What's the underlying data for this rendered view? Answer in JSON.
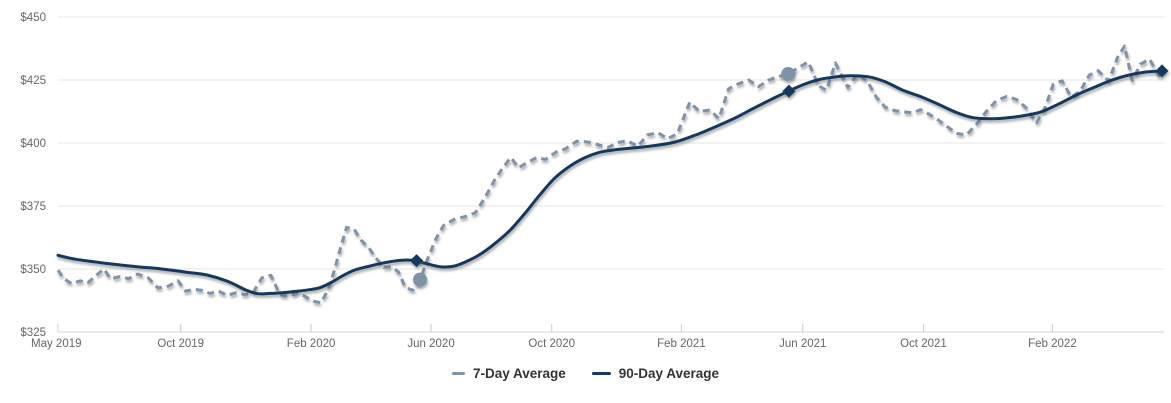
{
  "chart_data": {
    "type": "line",
    "title": "",
    "xlabel": "",
    "ylabel": "",
    "x_unit": "weeks since May 2019",
    "xlim": [
      0,
      159.2
    ],
    "ylim": [
      325,
      450
    ],
    "grid": true,
    "legend_position": "bottom",
    "currency_prefix": "$",
    "y_ticks": [
      {
        "label": "$450",
        "value": 450
      },
      {
        "label": "$425",
        "value": 425
      },
      {
        "label": "$400",
        "value": 400
      },
      {
        "label": "$375",
        "value": 375
      },
      {
        "label": "$350",
        "value": 350
      },
      {
        "label": "$325",
        "value": 325
      }
    ],
    "x_ticks": [
      {
        "label": "May 2019",
        "w": 0
      },
      {
        "label": "Oct 2019",
        "w": 17.7
      },
      {
        "label": "Feb 2020",
        "w": 36.5
      },
      {
        "label": "Jun 2020",
        "w": 53.8
      },
      {
        "label": "Oct 2020",
        "w": 71.2
      },
      {
        "label": "Feb 2021",
        "w": 89.9
      },
      {
        "label": "Jun 2021",
        "w": 107.4
      },
      {
        "label": "Oct 2021",
        "w": 124.8
      },
      {
        "label": "Feb 2022",
        "w": 143.4
      }
    ],
    "series": [
      {
        "name": "7-Day Average",
        "style": "dashed",
        "color": "#7e93aa",
        "marker_shape": "circle",
        "markers": [
          [
            52.2,
            345.8
          ],
          [
            105.3,
            427.4
          ]
        ],
        "points": [
          [
            0,
            349.5
          ],
          [
            0.9,
            346
          ],
          [
            2,
            344.2
          ],
          [
            3.2,
            345.3
          ],
          [
            4.3,
            344.5
          ],
          [
            5.5,
            347.5
          ],
          [
            6.6,
            350
          ],
          [
            7.6,
            346.2
          ],
          [
            8.9,
            347
          ],
          [
            10.2,
            346.2
          ],
          [
            11.5,
            348
          ],
          [
            13,
            346.5
          ],
          [
            14.4,
            342.5
          ],
          [
            15.9,
            343.2
          ],
          [
            17.3,
            345.3
          ],
          [
            18.4,
            341.2
          ],
          [
            19.6,
            342
          ],
          [
            20.8,
            341.5
          ],
          [
            21.9,
            340.3
          ],
          [
            23.1,
            341.3
          ],
          [
            24.4,
            339.6
          ],
          [
            25.7,
            340.6
          ],
          [
            27,
            339.8
          ],
          [
            28.2,
            341
          ],
          [
            29.4,
            346.5
          ],
          [
            30.7,
            347.5
          ],
          [
            32,
            339.8
          ],
          [
            33.3,
            339.2
          ],
          [
            34.6,
            340.6
          ],
          [
            35.7,
            339
          ],
          [
            36.9,
            337.2
          ],
          [
            37.9,
            336.6
          ],
          [
            38.9,
            341.5
          ],
          [
            39.8,
            349
          ],
          [
            40.6,
            357
          ],
          [
            41.6,
            366.5
          ],
          [
            42.7,
            365.8
          ],
          [
            43.7,
            361.5
          ],
          [
            44.8,
            358.5
          ],
          [
            45.8,
            354.5
          ],
          [
            47,
            350.7
          ],
          [
            48.1,
            350.9
          ],
          [
            49.1,
            348.8
          ],
          [
            50.1,
            342.6
          ],
          [
            51.2,
            341.6
          ],
          [
            52.2,
            345.8
          ],
          [
            53.3,
            354
          ],
          [
            54.5,
            362
          ],
          [
            55.6,
            367.3
          ],
          [
            57.1,
            369.7
          ],
          [
            58.7,
            370.8
          ],
          [
            60.2,
            372.4
          ],
          [
            61.7,
            379
          ],
          [
            63,
            385.5
          ],
          [
            64.1,
            390
          ],
          [
            65.3,
            394.3
          ],
          [
            66.4,
            390.2
          ],
          [
            67.7,
            392.3
          ],
          [
            69,
            394.2
          ],
          [
            70.3,
            393.5
          ],
          [
            71.8,
            396.4
          ],
          [
            73.2,
            397.7
          ],
          [
            74.8,
            400.7
          ],
          [
            76.4,
            400.4
          ],
          [
            77.8,
            399.4
          ],
          [
            79.3,
            398.2
          ],
          [
            80.7,
            400.2
          ],
          [
            82.1,
            400.9
          ],
          [
            83.6,
            398.7
          ],
          [
            85,
            403.2
          ],
          [
            86.5,
            404.1
          ],
          [
            87.9,
            401.8
          ],
          [
            89.3,
            403.6
          ],
          [
            91.1,
            416.2
          ],
          [
            92.5,
            412.5
          ],
          [
            94,
            413.1
          ],
          [
            95.3,
            409.7
          ],
          [
            96.7,
            421.5
          ],
          [
            98.1,
            423.5
          ],
          [
            99.6,
            425
          ],
          [
            101,
            422.4
          ],
          [
            102.5,
            425
          ],
          [
            103.9,
            426.4
          ],
          [
            105.3,
            427.4
          ],
          [
            106.6,
            429.6
          ],
          [
            108.2,
            432.2
          ],
          [
            109.7,
            422.6
          ],
          [
            110.8,
            421
          ],
          [
            112.1,
            431.7
          ],
          [
            113.9,
            422
          ],
          [
            115.3,
            427.4
          ],
          [
            116.7,
            424.6
          ],
          [
            118,
            418.2
          ],
          [
            119.3,
            414.2
          ],
          [
            120.6,
            412.9
          ],
          [
            121.9,
            412.4
          ],
          [
            123.2,
            412
          ],
          [
            124.4,
            413.2
          ],
          [
            125.7,
            411.3
          ],
          [
            127,
            409
          ],
          [
            128.3,
            406.4
          ],
          [
            129.6,
            403.8
          ],
          [
            131,
            403.2
          ],
          [
            132.4,
            407.3
          ],
          [
            133.9,
            412.6
          ],
          [
            135.3,
            416.8
          ],
          [
            136.8,
            418.5
          ],
          [
            138.2,
            417.3
          ],
          [
            139.6,
            414
          ],
          [
            141.1,
            408
          ],
          [
            142.4,
            414.5
          ],
          [
            143.5,
            423.2
          ],
          [
            144.8,
            424.7
          ],
          [
            146.1,
            418.2
          ],
          [
            147.4,
            420.6
          ],
          [
            148.7,
            426.9
          ],
          [
            150,
            428.7
          ],
          [
            151.5,
            424.6
          ],
          [
            152.8,
            434
          ],
          [
            153.8,
            438.5
          ],
          [
            154.9,
            424.8
          ],
          [
            156.1,
            431.3
          ],
          [
            157.4,
            433.3
          ],
          [
            158.4,
            428.4
          ],
          [
            159.2,
            424.8
          ]
        ]
      },
      {
        "name": "90-Day Average",
        "style": "solid",
        "color": "#17395d",
        "marker_shape": "diamond",
        "markers": [
          [
            51.7,
            353.3
          ],
          [
            105.4,
            420.6
          ],
          [
            159.2,
            428.6
          ]
        ],
        "points": [
          [
            0,
            355.4
          ],
          [
            2.5,
            353.9
          ],
          [
            7.1,
            352.2
          ],
          [
            11.4,
            350.9
          ],
          [
            14.7,
            350.1
          ],
          [
            18.3,
            348.8
          ],
          [
            21.5,
            347.6
          ],
          [
            24.4,
            345.2
          ],
          [
            27,
            341.8
          ],
          [
            28.8,
            340.2
          ],
          [
            30.6,
            340.3
          ],
          [
            32.4,
            340.6
          ],
          [
            34.2,
            341.1
          ],
          [
            36.3,
            341.8
          ],
          [
            37.8,
            342.6
          ],
          [
            39.5,
            344.8
          ],
          [
            41.1,
            347.4
          ],
          [
            42.8,
            349.6
          ],
          [
            45,
            351.2
          ],
          [
            47.1,
            352.5
          ],
          [
            49.3,
            353.4
          ],
          [
            51,
            353.5
          ],
          [
            52.9,
            352.3
          ],
          [
            55.1,
            350.9
          ],
          [
            57.2,
            351.2
          ],
          [
            59.4,
            353.6
          ],
          [
            61.3,
            356.6
          ],
          [
            63.3,
            360.8
          ],
          [
            65.2,
            365.4
          ],
          [
            67.3,
            372
          ],
          [
            69.5,
            379.5
          ],
          [
            71.6,
            386
          ],
          [
            73.8,
            390.8
          ],
          [
            76,
            394.2
          ],
          [
            78.1,
            396.3
          ],
          [
            80.3,
            397.3
          ],
          [
            83.2,
            398.1
          ],
          [
            86.1,
            399
          ],
          [
            89,
            400.4
          ],
          [
            91.8,
            403
          ],
          [
            94.7,
            406.3
          ],
          [
            97.6,
            409.9
          ],
          [
            100.4,
            413.9
          ],
          [
            103.3,
            417.9
          ],
          [
            105.5,
            420.8
          ],
          [
            107.7,
            423.4
          ],
          [
            109.8,
            425.2
          ],
          [
            112,
            426.2
          ],
          [
            114.2,
            426.7
          ],
          [
            116.8,
            426.3
          ],
          [
            119.2,
            424.4
          ],
          [
            121.8,
            421
          ],
          [
            124.4,
            418.4
          ],
          [
            126.8,
            415.6
          ],
          [
            129.3,
            412.4
          ],
          [
            131.7,
            410.2
          ],
          [
            134.3,
            409.6
          ],
          [
            136.9,
            410
          ],
          [
            139.4,
            410.9
          ],
          [
            141.8,
            412.4
          ],
          [
            144.4,
            415.6
          ],
          [
            147,
            419.2
          ],
          [
            149.5,
            422.2
          ],
          [
            151.9,
            424.9
          ],
          [
            154.5,
            427
          ],
          [
            157,
            428.2
          ],
          [
            159.2,
            428.6
          ]
        ]
      }
    ],
    "colors": {
      "gridline": "#e6e6e6",
      "axis_line": "#cfd6dc",
      "tick_mark": "#cccccc",
      "axis_label": "#666666",
      "legend_text": "#333333",
      "background": "#ffffff"
    }
  }
}
